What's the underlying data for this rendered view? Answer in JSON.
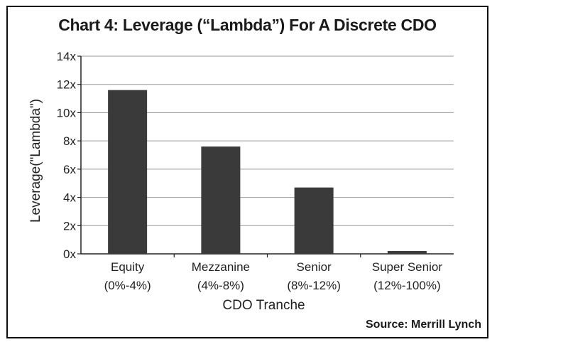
{
  "chart_data": {
    "type": "bar",
    "title": "Chart 4: Leverage (“Lambda”) For A Discrete CDO",
    "categories": [
      {
        "line1": "Equity",
        "line2": "(0%-4%)"
      },
      {
        "line1": "Mezzanine",
        "line2": "(4%-8%)"
      },
      {
        "line1": "Senior",
        "line2": "(8%-12%)"
      },
      {
        "line1": "Super Senior",
        "line2": "(12%-100%)"
      }
    ],
    "values": [
      11.6,
      7.6,
      4.7,
      0.2
    ],
    "ylabel": "Leverage(\"Lambda\")",
    "xlabel": "CDO Tranche",
    "ylim": [
      0,
      14
    ],
    "yticks": [
      0,
      2,
      4,
      6,
      8,
      10,
      12,
      14
    ],
    "ytick_labels": [
      "0x",
      "2x",
      "4x",
      "6x",
      "8x",
      "10x",
      "12x",
      "14x"
    ],
    "grid": true,
    "source": "Source: Merrill Lynch",
    "bar_color": "#3a3a3a",
    "grid_color": "#9a9a9a",
    "axis_color": "#222222"
  }
}
